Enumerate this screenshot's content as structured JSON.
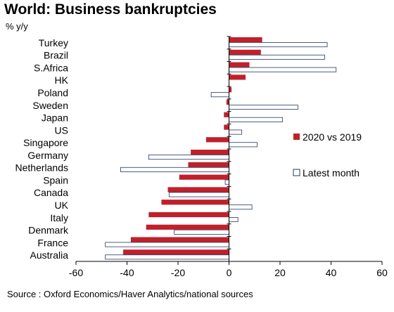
{
  "title": "World: Business bankruptcies",
  "unit_label": "% y/y",
  "source": "Source : Oxford Economics/Haver Analytics/national sources",
  "colors": {
    "series_a": "#c0202a",
    "series_b_fill": "#ffffff",
    "series_b_stroke": "#1f3864",
    "axis": "#000000"
  },
  "chart_data": {
    "type": "bar",
    "orientation": "horizontal",
    "categories": [
      "Turkey",
      "Brazil",
      "S.Africa",
      "HK",
      "Poland",
      "Sweden",
      "Japan",
      "US",
      "Singapore",
      "Germany",
      "Netherlands",
      "Spain",
      "Canada",
      "UK",
      "Italy",
      "Denmark",
      "France",
      "Australia"
    ],
    "series": [
      {
        "name": "2020 vs 2019",
        "values": [
          13,
          12.5,
          8,
          6.5,
          1,
          -1,
          -2,
          -2,
          -9,
          -15,
          -16,
          -19.5,
          -24,
          -26.5,
          -31.5,
          -32.5,
          -38.5,
          -41.5
        ]
      },
      {
        "name": "Latest month",
        "values": [
          38.5,
          37.5,
          42,
          0,
          -7,
          27,
          21,
          5,
          11,
          -31.5,
          -42.5,
          -1.5,
          -23.5,
          9,
          3.5,
          -21.5,
          -48.5,
          -48.5
        ]
      }
    ],
    "xlim": [
      -60,
      60
    ],
    "xticks": [
      -60,
      -40,
      -20,
      0,
      20,
      40,
      60
    ],
    "legend_position": "right"
  }
}
